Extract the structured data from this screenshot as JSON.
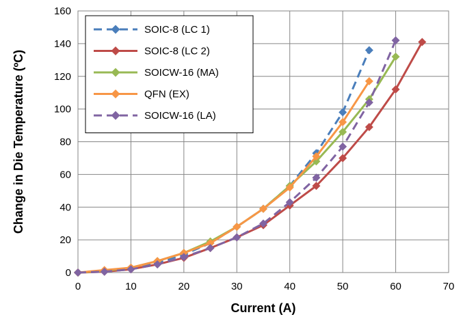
{
  "chart_data": {
    "type": "line",
    "title": "",
    "xlabel": "Current (A)",
    "ylabel": "Change in Die Temperature (ºC)",
    "xlim": [
      0,
      70
    ],
    "ylim": [
      0,
      160
    ],
    "xticks": [
      0,
      10,
      20,
      30,
      40,
      50,
      60,
      70
    ],
    "yticks": [
      0,
      20,
      40,
      60,
      80,
      100,
      120,
      140,
      160
    ],
    "grid": true,
    "legend_position": "top-left",
    "series": [
      {
        "name": "SOIC-8 (LC 1)",
        "color": "#4a7ebb",
        "dash": "dashed",
        "marker": "diamond",
        "x": [
          0,
          5,
          10,
          15,
          20,
          25,
          30,
          35,
          40,
          45,
          50,
          55
        ],
        "y": [
          0,
          1,
          2.5,
          6,
          11,
          18,
          28,
          39,
          53,
          73,
          98,
          136
        ]
      },
      {
        "name": "SOIC-8 (LC 2)",
        "color": "#be4b48",
        "dash": "solid",
        "marker": "diamond",
        "x": [
          0,
          5,
          10,
          15,
          20,
          25,
          30,
          35,
          40,
          45,
          50,
          55,
          60,
          65
        ],
        "y": [
          0,
          0.5,
          2,
          5,
          9,
          15,
          21.5,
          29,
          41,
          53,
          70,
          89,
          112,
          141
        ]
      },
      {
        "name": "SOICW-16 (MA)",
        "color": "#98b954",
        "dash": "solid",
        "marker": "diamond",
        "x": [
          0,
          5,
          10,
          15,
          20,
          25,
          30,
          35,
          40,
          45,
          50,
          55,
          60
        ],
        "y": [
          0,
          1,
          3,
          7,
          12,
          19,
          28,
          39,
          53,
          68,
          86,
          106,
          132
        ]
      },
      {
        "name": "QFN (EX)",
        "color": "#f79646",
        "dash": "solid",
        "marker": "diamond",
        "x": [
          0,
          5,
          10,
          15,
          20,
          25,
          30,
          35,
          40,
          45,
          50,
          55
        ],
        "y": [
          0,
          1.5,
          3,
          7,
          12,
          18,
          28,
          39,
          52,
          71,
          92,
          117
        ]
      },
      {
        "name": "SOICW-16 (LA)",
        "color": "#8064a2",
        "dash": "dashed",
        "marker": "diamond",
        "x": [
          0,
          5,
          10,
          15,
          20,
          25,
          30,
          35,
          40,
          45,
          50,
          55,
          60
        ],
        "y": [
          0,
          0.5,
          2,
          5,
          9.5,
          15,
          21.5,
          30,
          43,
          58,
          77,
          104,
          142
        ]
      }
    ]
  }
}
